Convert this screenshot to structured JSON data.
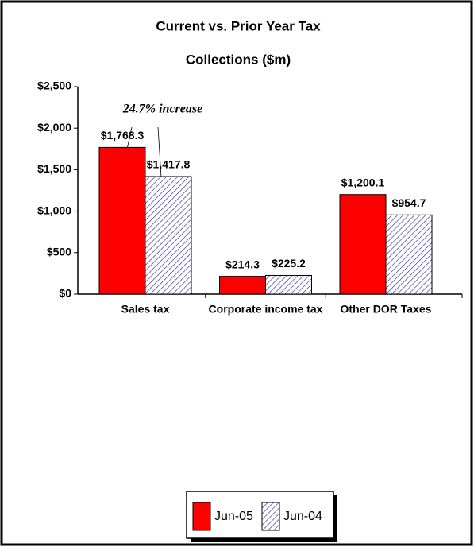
{
  "chart_data": {
    "type": "bar",
    "title": [
      "Current vs. Prior Year Tax",
      "Collections ($m)"
    ],
    "categories": [
      "Sales tax",
      "Corporate income tax",
      "Other DOR Taxes"
    ],
    "series": [
      {
        "name": "Jun-05",
        "color": "#ff0000",
        "pattern": "solid",
        "values": [
          1768.3,
          214.3,
          1200.1
        ],
        "value_labels": [
          "$1,768.3",
          "$214.3",
          "$1,200.1"
        ]
      },
      {
        "name": "Jun-04",
        "color": "#3a3aa0",
        "pattern": "hatch",
        "values": [
          1417.8,
          225.2,
          954.7
        ],
        "value_labels": [
          "$1,417.8",
          "$225.2",
          "$954.7"
        ]
      }
    ],
    "ylim": [
      0,
      2500
    ],
    "yticks": [
      {
        "value": 0,
        "label": "$0"
      },
      {
        "value": 500,
        "label": "$500"
      },
      {
        "value": 1000,
        "label": "$1,000"
      },
      {
        "value": 1500,
        "label": "$1,500"
      },
      {
        "value": 2000,
        "label": "$2,000"
      },
      {
        "value": 2500,
        "label": "$2,500"
      }
    ],
    "annotation": "24.7% increase",
    "grid": false,
    "legend": "bottom"
  }
}
